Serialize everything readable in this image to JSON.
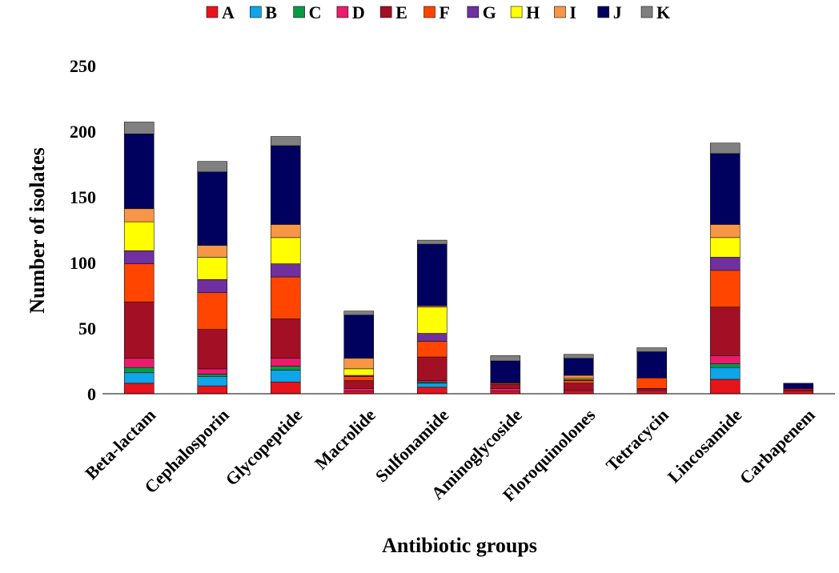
{
  "chart_data": {
    "type": "bar",
    "stacked": true,
    "xlabel": "Antibiotic groups",
    "ylabel": "Number of isolates",
    "ylim": [
      0,
      250
    ],
    "yticks": [
      0,
      50,
      100,
      150,
      200,
      250
    ],
    "grid": false,
    "legend_position": "top",
    "categories": [
      "Beta-lactam",
      "Cephalosporin",
      "Glycopeptide",
      "Macrolide",
      "Sulfonamide",
      "Aminoglycoside",
      "Floroquinolones",
      "Tetracycin",
      "Lincosamide",
      "Carbapenem"
    ],
    "series": [
      {
        "name": "A",
        "color": "#e8141b",
        "values": [
          8,
          6,
          9,
          2,
          5,
          2,
          2,
          2,
          11,
          2
        ]
      },
      {
        "name": "B",
        "color": "#0ea5e9",
        "values": [
          8,
          7,
          9,
          0,
          3,
          0,
          0,
          0,
          9,
          0
        ]
      },
      {
        "name": "C",
        "color": "#0a9a45",
        "values": [
          4,
          2,
          3,
          0,
          1,
          0,
          0,
          0,
          3,
          0
        ]
      },
      {
        "name": "D",
        "color": "#ec1b6e",
        "values": [
          7,
          4,
          6,
          2,
          1,
          2,
          1,
          1,
          6,
          0
        ]
      },
      {
        "name": "E",
        "color": "#a30f25",
        "values": [
          43,
          30,
          30,
          6,
          18,
          3,
          5,
          1,
          37,
          2
        ]
      },
      {
        "name": "F",
        "color": "#ff4500",
        "values": [
          29,
          28,
          32,
          3,
          12,
          1,
          2,
          8,
          28,
          0
        ]
      },
      {
        "name": "G",
        "color": "#7030a0",
        "values": [
          10,
          10,
          10,
          1,
          6,
          0,
          1,
          0,
          10,
          0
        ]
      },
      {
        "name": "H",
        "color": "#ffff00",
        "values": [
          22,
          17,
          20,
          5,
          20,
          0,
          1,
          0,
          15,
          0
        ]
      },
      {
        "name": "I",
        "color": "#f79646",
        "values": [
          10,
          9,
          10,
          8,
          1,
          0,
          2,
          0,
          10,
          0
        ]
      },
      {
        "name": "J",
        "color": "#00005e",
        "values": [
          57,
          56,
          60,
          33,
          47,
          17,
          13,
          20,
          54,
          4
        ]
      },
      {
        "name": "K",
        "color": "#808080",
        "values": [
          9,
          8,
          7,
          3,
          3,
          4,
          3,
          3,
          8,
          0
        ]
      }
    ]
  }
}
